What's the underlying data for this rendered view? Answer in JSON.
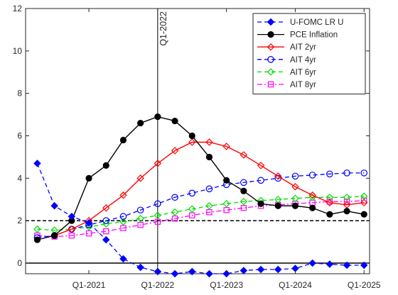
{
  "chart_data": {
    "type": "line",
    "title": "",
    "xlabel": "",
    "ylabel": "",
    "ylim": [
      -0.5,
      12
    ],
    "xlim": [
      2020.08,
      2025.08
    ],
    "yticks": [
      0,
      2,
      4,
      6,
      8,
      10,
      12
    ],
    "xticks": [
      {
        "x": 2021.0,
        "label": "Q1-2021"
      },
      {
        "x": 2022.0,
        "label": "Q1-2022"
      },
      {
        "x": 2023.0,
        "label": "Q1-2023"
      },
      {
        "x": 2024.0,
        "label": "Q1-2024"
      },
      {
        "x": 2025.0,
        "label": "Q1-2025"
      }
    ],
    "grid": false,
    "legend_position": "top-right",
    "reference_lines": [
      {
        "axis": "y",
        "value": 2,
        "style": "dashed",
        "color": "#000000"
      },
      {
        "axis": "y",
        "value": 0,
        "style": "solid",
        "color": "#000000"
      }
    ],
    "annotation": {
      "text": "Q1-2022",
      "x": 2022.0
    },
    "series": [
      {
        "name": "U-FOMC LR U",
        "color": "#0000ff",
        "line": "dashed",
        "marker": "diamond-filled",
        "x": [
          2020.25,
          2020.5,
          2020.75,
          2021.0,
          2021.25,
          2021.5,
          2021.75,
          2022.0,
          2022.25,
          2022.5,
          2022.75,
          2023.0,
          2023.25,
          2023.5,
          2023.75,
          2024.0,
          2024.25,
          2024.5,
          2024.75,
          2025.0
        ],
        "values": [
          4.7,
          2.7,
          2.2,
          1.9,
          1.1,
          0.2,
          -0.2,
          -0.4,
          -0.5,
          -0.4,
          -0.5,
          -0.5,
          -0.35,
          -0.3,
          -0.3,
          -0.25,
          0.0,
          -0.05,
          -0.1,
          -0.1
        ]
      },
      {
        "name": "PCE Inflation",
        "color": "#000000",
        "line": "solid",
        "marker": "circle-filled",
        "x": [
          2020.25,
          2020.5,
          2020.75,
          2021.0,
          2021.25,
          2021.5,
          2021.75,
          2022.0,
          2022.25,
          2022.5,
          2022.75,
          2023.0,
          2023.25,
          2023.5,
          2023.75,
          2024.0,
          2024.25,
          2024.5,
          2024.75,
          2025.0
        ],
        "values": [
          1.1,
          1.3,
          2.0,
          4.0,
          4.6,
          5.8,
          6.6,
          6.9,
          6.7,
          6.0,
          5.0,
          3.9,
          3.4,
          2.8,
          2.7,
          2.7,
          2.6,
          2.3,
          2.45,
          2.3
        ]
      },
      {
        "name": "AIT 2yr",
        "color": "#ff0000",
        "line": "solid",
        "marker": "diamond-open",
        "x": [
          2020.5,
          2020.75,
          2021.0,
          2021.25,
          2021.5,
          2021.75,
          2022.0,
          2022.25,
          2022.5,
          2022.75,
          2023.0,
          2023.25,
          2023.5,
          2023.75,
          2024.0,
          2024.25,
          2024.5,
          2024.75,
          2025.0
        ],
        "values": [
          1.3,
          1.6,
          2.0,
          2.6,
          3.2,
          4.0,
          4.7,
          5.3,
          5.7,
          5.7,
          5.5,
          5.1,
          4.6,
          4.1,
          3.6,
          3.2,
          2.85,
          2.75,
          2.85
        ]
      },
      {
        "name": "AIT 4yr",
        "color": "#0000ff",
        "line": "dashed",
        "marker": "circle-open",
        "x": [
          2020.25,
          2020.5,
          2020.75,
          2021.0,
          2021.25,
          2021.5,
          2021.75,
          2022.0,
          2022.25,
          2022.5,
          2022.75,
          2023.0,
          2023.25,
          2023.5,
          2023.75,
          2024.0,
          2024.25,
          2024.5,
          2024.75,
          2025.0
        ],
        "values": [
          1.2,
          1.3,
          1.6,
          1.8,
          2.0,
          2.2,
          2.5,
          2.8,
          3.1,
          3.3,
          3.5,
          3.7,
          3.8,
          3.9,
          4.0,
          4.1,
          4.15,
          4.2,
          4.25,
          4.25
        ]
      },
      {
        "name": "AIT 6yr",
        "color": "#00dd00",
        "line": "dashed",
        "marker": "diamond-open",
        "x": [
          2020.25,
          2020.5,
          2020.75,
          2021.0,
          2021.25,
          2021.5,
          2021.75,
          2022.0,
          2022.25,
          2022.5,
          2022.75,
          2023.0,
          2023.25,
          2023.5,
          2023.75,
          2024.0,
          2024.25,
          2024.5,
          2024.75,
          2025.0
        ],
        "values": [
          1.6,
          1.55,
          1.6,
          1.7,
          1.85,
          1.95,
          2.1,
          2.25,
          2.4,
          2.55,
          2.7,
          2.8,
          2.9,
          2.95,
          3.0,
          3.05,
          3.1,
          3.1,
          3.1,
          3.15
        ]
      },
      {
        "name": "AIT 8yr",
        "color": "#ff00ff",
        "line": "dashdot",
        "marker": "square-open",
        "x": [
          2020.25,
          2020.5,
          2020.75,
          2021.0,
          2021.25,
          2021.5,
          2021.75,
          2022.0,
          2022.25,
          2022.5,
          2022.75,
          2023.0,
          2023.25,
          2023.5,
          2023.75,
          2024.0,
          2024.25,
          2024.5,
          2024.75,
          2025.0
        ],
        "values": [
          1.3,
          1.25,
          1.3,
          1.4,
          1.5,
          1.65,
          1.8,
          1.95,
          2.1,
          2.25,
          2.4,
          2.5,
          2.6,
          2.7,
          2.75,
          2.8,
          2.85,
          2.9,
          2.9,
          2.95
        ]
      }
    ]
  }
}
